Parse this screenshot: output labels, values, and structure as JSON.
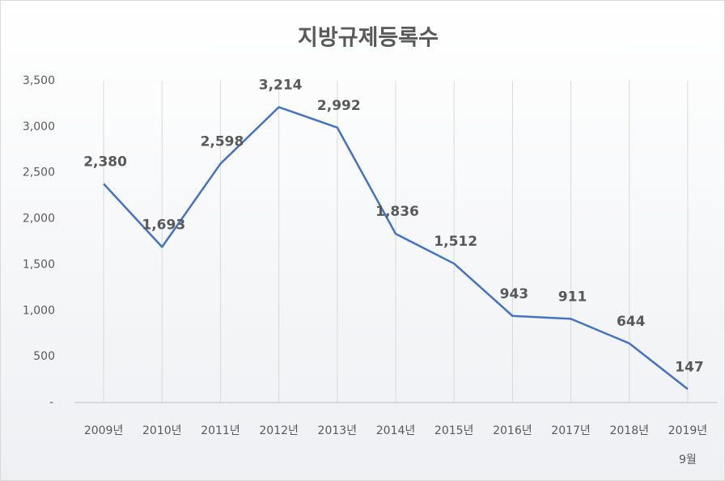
{
  "chart_data": {
    "type": "line",
    "title": "지방규제등록수",
    "categories": [
      "2009년",
      "2010년",
      "2011년",
      "2012년",
      "2013년",
      "2014년",
      "2015년",
      "2016년",
      "2017년",
      "2018년",
      "2019년 9월"
    ],
    "series": [
      {
        "name": "지방규제등록수",
        "color": "#4472c4",
        "values": [
          2380,
          1693,
          2598,
          3214,
          2992,
          1836,
          1512,
          943,
          911,
          644,
          147
        ],
        "value_labels": [
          "2,380",
          "1,693",
          "2,598",
          "3,214",
          "2,992",
          "1,836",
          "1,512",
          "943",
          "911",
          "644",
          "147"
        ]
      }
    ],
    "ylim": [
      0,
      3500
    ],
    "yticks": [
      {
        "value": 0,
        "label": "-"
      },
      500,
      {
        "value": 1000,
        "label": "1,000"
      },
      {
        "value": 1500,
        "label": "1,500"
      },
      {
        "value": 2000,
        "label": "2,000"
      },
      {
        "value": 2500,
        "label": "2,500"
      },
      {
        "value": 3000,
        "label": "3,000"
      },
      {
        "value": 3500,
        "label": "3,500"
      }
    ]
  }
}
